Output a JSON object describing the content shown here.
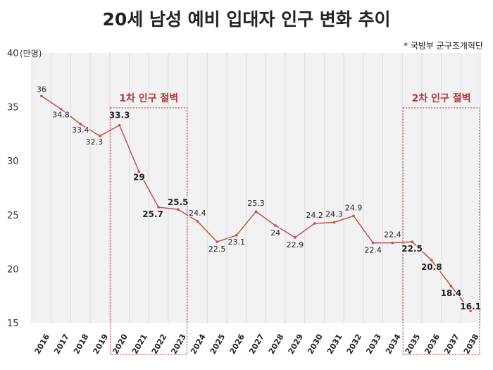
{
  "chart_data": {
    "type": "line",
    "title": "20세 남성 예비 입대자 인구 변화 추이",
    "source": "* 국방부 군구조개혁단",
    "ylabel": "(만명)",
    "ylim": [
      15,
      40
    ],
    "yticks": [
      15,
      20,
      25,
      30,
      35,
      40
    ],
    "grid": "vertical",
    "line_color": "#c0504d",
    "x": [
      "2016",
      "2017",
      "2018",
      "2019",
      "2020",
      "2021",
      "2022",
      "2023",
      "2024",
      "2025",
      "2026",
      "2027",
      "2028",
      "2029",
      "2030",
      "2031",
      "2032",
      "2033",
      "2034",
      "2035",
      "2036",
      "2037",
      "2038"
    ],
    "values": [
      36,
      34.8,
      33.4,
      32.3,
      33.3,
      29,
      25.7,
      25.5,
      24.4,
      22.5,
      23.1,
      25.3,
      24,
      22.9,
      24.2,
      24.3,
      24.9,
      22.4,
      22.4,
      22.5,
      20.8,
      18.4,
      16.1
    ],
    "bold_labels_from": [
      "2020",
      "2021",
      "2022",
      "2023",
      "2035",
      "2036",
      "2037",
      "2038"
    ],
    "annotations": [
      {
        "label": "1차 인구 절벽",
        "from": "2020",
        "to": "2023"
      },
      {
        "label": "2차 인구 절벽",
        "from": "2035",
        "to": "2038"
      }
    ]
  }
}
